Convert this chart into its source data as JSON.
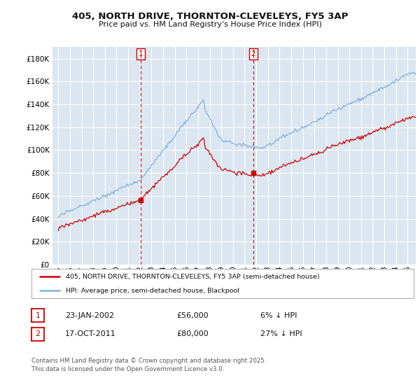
{
  "title_line1": "405, NORTH DRIVE, THORNTON-CLEVELEYS, FY5 3AP",
  "title_line2": "Price paid vs. HM Land Registry's House Price Index (HPI)",
  "background_color": "#ffffff",
  "plot_bg_color": "#dce6f1",
  "grid_color": "#ffffff",
  "hpi_color": "#7fb2d8",
  "price_color": "#cc0000",
  "sale1_price": 56000,
  "sale2_price": 80000,
  "legend_entry1": "405, NORTH DRIVE, THORNTON-CLEVELEYS, FY5 3AP (semi-detached house)",
  "legend_entry2": "HPI: Average price, semi-detached house, Blackpool",
  "table_row1": [
    "1",
    "23-JAN-2002",
    "£56,000",
    "6% ↓ HPI"
  ],
  "table_row2": [
    "2",
    "17-OCT-2011",
    "£80,000",
    "27% ↓ HPI"
  ],
  "footer": "Contains HM Land Registry data © Crown copyright and database right 2025.\nThis data is licensed under the Open Government Licence v3.0.",
  "ylim": [
    0,
    190000
  ],
  "xlim_start": 1994.5,
  "xlim_end": 2025.7,
  "yticks": [
    0,
    20000,
    40000,
    60000,
    80000,
    100000,
    120000,
    140000,
    160000,
    180000
  ]
}
